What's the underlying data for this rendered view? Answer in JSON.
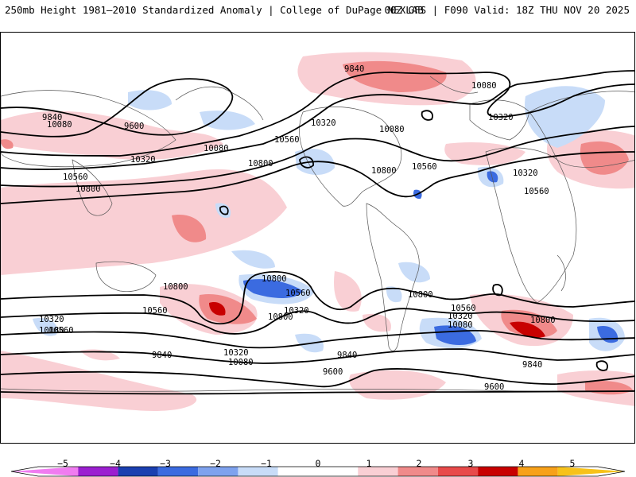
{
  "header": {
    "title": "250mb Height 1981–2010 Standardized Anomaly | College of DuPage NEXLAB",
    "run_info": "00Z GFS | F090 Valid: 18Z THU NOV 20 2025"
  },
  "map": {
    "contour_labels": [
      "9840",
      "9600",
      "10080",
      "10320",
      "10560",
      "10800",
      "10080",
      "10320",
      "10560",
      "10800",
      "9840",
      "10320",
      "10080",
      "10560",
      "10800",
      "10080",
      "10320",
      "10560",
      "10800",
      "10320",
      "10560",
      "10800",
      "10800",
      "10080",
      "10320",
      "10560",
      "9840",
      "10800",
      "10320",
      "10080",
      "10560",
      "10800",
      "9840",
      "9600",
      "9600",
      "9840",
      "10320",
      "10080",
      "10560"
    ]
  },
  "colorbar": {
    "tick_labels": [
      "−5",
      "−4",
      "−3",
      "−2",
      "−1",
      "0",
      "1",
      "2",
      "3",
      "4",
      "5"
    ],
    "colors": [
      "#f07cf0",
      "#9b1fd0",
      "#1a3fb0",
      "#3b6be0",
      "#7ea2ee",
      "#c8dcf8",
      "#ffffff",
      "#ffffff",
      "#f9cfd4",
      "#f08a8a",
      "#e84a4a",
      "#c80000",
      "#f7a11a",
      "#f7c21a"
    ]
  }
}
